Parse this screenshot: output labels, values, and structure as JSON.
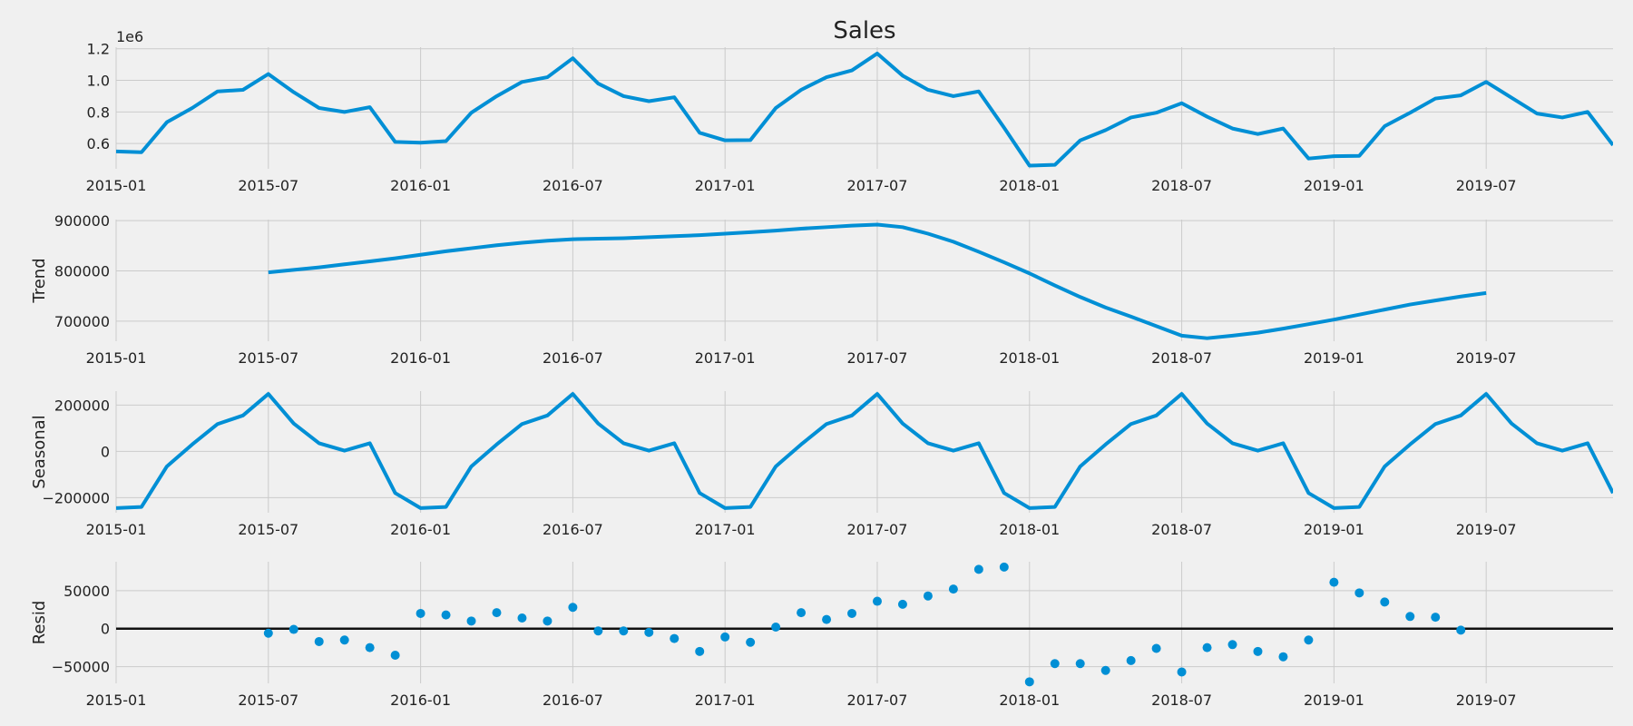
{
  "chart_data": [
    {
      "type": "line",
      "title": "Sales",
      "ylabel": "",
      "offset_label": "1e6",
      "ylim": [
        0.44,
        1.21
      ],
      "yticks": [
        0.6,
        0.8,
        1.0,
        1.2
      ],
      "ytick_labels": [
        "0.6",
        "0.8",
        "1.0",
        "1.2"
      ],
      "grid": true,
      "color": "#008fd5",
      "values": [
        0.55,
        0.545,
        0.735,
        0.825,
        0.93,
        0.94,
        1.04,
        0.925,
        0.825,
        0.8,
        0.83,
        0.61,
        0.605,
        0.615,
        0.795,
        0.9,
        0.99,
        1.02,
        1.14,
        0.98,
        0.9,
        0.868,
        0.893,
        0.668,
        0.62,
        0.622,
        0.825,
        0.94,
        1.02,
        1.063,
        1.17,
        1.03,
        0.94,
        0.9,
        0.93,
        0.7,
        0.46,
        0.465,
        0.62,
        0.685,
        0.765,
        0.795,
        0.855,
        0.77,
        0.695,
        0.66,
        0.695,
        0.505,
        0.52,
        0.522,
        0.71,
        0.795,
        0.885,
        0.905,
        0.99,
        0.89,
        0.79,
        0.765,
        0.8,
        0.59
      ]
    },
    {
      "type": "line",
      "title": "",
      "ylabel": "Trend",
      "ylim": [
        660000,
        902000
      ],
      "yticks": [
        700000,
        800000,
        900000
      ],
      "ytick_labels": [
        "700000",
        "800000",
        "900000"
      ],
      "grid": true,
      "color": "#008fd5",
      "values": [
        null,
        null,
        null,
        null,
        null,
        null,
        797000,
        802000,
        807000,
        813000,
        819000,
        825000,
        832000,
        839000,
        845000,
        851000,
        856000,
        860000,
        863000,
        864000,
        865000,
        867000,
        869000,
        871000,
        874000,
        877000,
        880000,
        884000,
        887000,
        890000,
        892000,
        887000,
        874000,
        858000,
        838000,
        817000,
        795000,
        771000,
        748000,
        727000,
        709000,
        690000,
        671000,
        666000,
        671000,
        677000,
        685000,
        694000,
        703000,
        713000,
        723000,
        733000,
        741000,
        749000,
        756000,
        null,
        null,
        null,
        null,
        null
      ]
    },
    {
      "type": "line",
      "title": "",
      "ylabel": "Seasonal",
      "ylim": [
        -265000,
        260000
      ],
      "yticks": [
        -200000,
        0,
        200000
      ],
      "ytick_labels": [
        "−200000",
        "0",
        "200000"
      ],
      "grid": true,
      "color": "#008fd5",
      "values": [
        -245000,
        -240000,
        -65000,
        30000,
        118000,
        155000,
        248000,
        120000,
        35000,
        3000,
        35000,
        -180000,
        -245000,
        -240000,
        -65000,
        30000,
        118000,
        155000,
        248000,
        120000,
        35000,
        3000,
        35000,
        -180000,
        -245000,
        -240000,
        -65000,
        30000,
        118000,
        155000,
        248000,
        120000,
        35000,
        3000,
        35000,
        -180000,
        -245000,
        -240000,
        -65000,
        30000,
        118000,
        155000,
        248000,
        120000,
        35000,
        3000,
        35000,
        -180000,
        -245000,
        -240000,
        -65000,
        30000,
        118000,
        155000,
        248000,
        120000,
        35000,
        3000,
        35000,
        -180000
      ]
    },
    {
      "type": "scatter",
      "title": "",
      "ylabel": "Resid",
      "ylim": [
        -72000,
        88000
      ],
      "yticks": [
        -50000,
        0,
        50000
      ],
      "ytick_labels": [
        "−50000",
        "0",
        "50000"
      ],
      "grid": true,
      "hline": 0,
      "color": "#008fd5",
      "values": [
        null,
        null,
        null,
        null,
        null,
        null,
        -6000,
        -1000,
        -17000,
        -15000,
        -25000,
        -35000,
        20000,
        18000,
        10000,
        21000,
        14000,
        10000,
        28000,
        -3000,
        -3000,
        -5000,
        -13000,
        -30000,
        -11000,
        -18000,
        2000,
        21000,
        12000,
        20000,
        36000,
        32000,
        43000,
        52000,
        78000,
        81000,
        -70000,
        -46000,
        -46000,
        -55000,
        -42000,
        -26000,
        -57000,
        -25000,
        -21000,
        -30000,
        -37000,
        -15000,
        61000,
        47000,
        35000,
        16000,
        15000,
        -2000,
        null,
        null,
        null,
        null,
        null,
        null
      ]
    }
  ],
  "x_axis": {
    "start": "2015-01",
    "end": "2019-12",
    "tick_labels": [
      "2015-01",
      "2015-07",
      "2016-01",
      "2016-07",
      "2017-01",
      "2017-07",
      "2018-01",
      "2018-07",
      "2019-01",
      "2019-07"
    ]
  }
}
